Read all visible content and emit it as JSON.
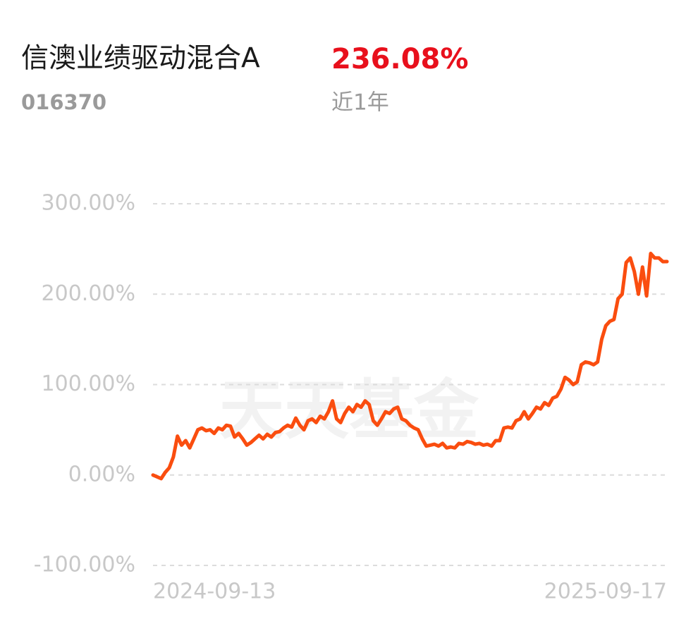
{
  "chart_data": {
    "type": "line",
    "title": "信澳业绩驱动混合A",
    "code": "016370",
    "period_return": "236.08%",
    "period": "近1年",
    "watermark": "天天基金",
    "categories": [
      "2024-09-13",
      null,
      null,
      null,
      null,
      null,
      null,
      null,
      null,
      null,
      null,
      null,
      null,
      null,
      null,
      null,
      null,
      null,
      null,
      null,
      null,
      null,
      null,
      null,
      null,
      null,
      null,
      null,
      null,
      null,
      null,
      null,
      null,
      null,
      null,
      null,
      null,
      null,
      null,
      null,
      null,
      null,
      null,
      null,
      null,
      null,
      null,
      null,
      null,
      null,
      null,
      null,
      null,
      null,
      null,
      null,
      null,
      null,
      null,
      null,
      null,
      null,
      null,
      null,
      null,
      null,
      null,
      null,
      null,
      null,
      null,
      null,
      null,
      null,
      null,
      null,
      null,
      null,
      null,
      null,
      null,
      null,
      null,
      null,
      null,
      null,
      null,
      null,
      null,
      null,
      null,
      null,
      null,
      null,
      null,
      null,
      null,
      null,
      null,
      null,
      null,
      null,
      null,
      null,
      null,
      null,
      null,
      null,
      null,
      null,
      null,
      null,
      null,
      null,
      null,
      null,
      null,
      null,
      null,
      null,
      null,
      null,
      null,
      null,
      null,
      null,
      "2025-09-17"
    ],
    "series": [
      {
        "color": "#fa4d0f",
        "values": [
          0,
          -2,
          -4,
          3,
          8,
          20,
          43,
          33,
          38,
          30,
          40,
          50,
          52,
          49,
          50,
          46,
          52,
          50,
          55,
          54,
          42,
          46,
          40,
          33,
          36,
          40,
          44,
          40,
          45,
          42,
          47,
          48,
          52,
          55,
          53,
          63,
          55,
          50,
          60,
          62,
          58,
          65,
          62,
          70,
          82,
          62,
          58,
          68,
          75,
          70,
          78,
          75,
          82,
          78,
          60,
          55,
          62,
          70,
          68,
          73,
          75,
          62,
          60,
          55,
          52,
          50,
          40,
          32,
          33,
          34,
          32,
          35,
          30,
          31,
          30,
          35,
          34,
          37,
          36,
          34,
          35,
          33,
          34,
          32,
          38,
          38,
          52,
          53,
          52,
          60,
          62,
          70,
          62,
          68,
          75,
          73,
          80,
          77,
          85,
          87,
          95,
          108,
          105,
          100,
          103,
          122,
          125,
          124,
          122,
          125,
          150,
          165,
          170,
          172,
          195,
          200,
          235,
          240,
          225,
          200,
          230,
          198,
          245,
          240,
          240,
          236,
          236.08
        ]
      }
    ],
    "ylim": [
      -100,
      300
    ],
    "yticks": [
      {
        "value": -100,
        "label": "-100.00%"
      },
      {
        "value": 0,
        "label": "0.00%"
      },
      {
        "value": 100,
        "label": "100.00%"
      },
      {
        "value": 200,
        "label": "200.00%"
      },
      {
        "value": 300,
        "label": "300.00%"
      }
    ],
    "grid": true
  }
}
